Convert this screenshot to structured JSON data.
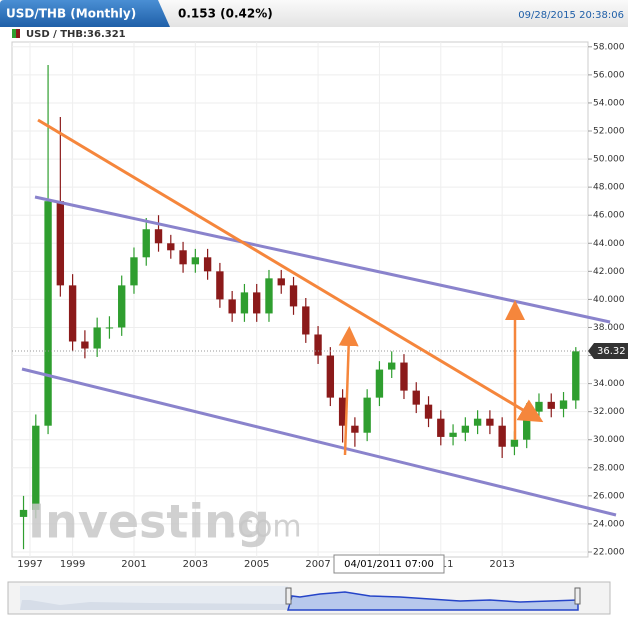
{
  "header": {
    "title": "USD/THB (Monthly)",
    "change": "0.153 (0.42%)",
    "timestamp": "09/28/2015 20:38:06"
  },
  "chart_data": {
    "type": "candlestick",
    "symbol_label": "USD / THB:36.321",
    "x": [
      1997.4,
      1997.8,
      1998.2,
      1998.6,
      1999.0,
      1999.4,
      1999.8,
      2000.2,
      2000.6,
      2001.0,
      2001.4,
      2001.8,
      2002.2,
      2002.6,
      2003.0,
      2003.4,
      2003.8,
      2004.2,
      2004.6,
      2005.0,
      2005.4,
      2005.8,
      2006.2,
      2006.6,
      2007.0,
      2007.4,
      2007.8,
      2008.2,
      2008.6,
      2009.0,
      2009.4,
      2009.8,
      2010.2,
      2010.6,
      2011.0,
      2011.4,
      2011.8,
      2012.2,
      2012.6,
      2013.0,
      2013.4,
      2013.8,
      2014.2,
      2014.6,
      2015.0,
      2015.4
    ],
    "open": [
      24.5,
      25,
      31,
      47,
      41,
      37,
      36.5,
      38,
      38,
      41,
      43,
      45,
      44,
      43.5,
      42.5,
      43,
      42,
      40,
      39,
      40.5,
      39,
      41.5,
      41,
      39.5,
      37.5,
      36,
      33,
      31,
      30.5,
      33,
      35,
      35.5,
      33.5,
      32.5,
      31.5,
      30.2,
      30.5,
      31,
      31.5,
      31,
      29.5,
      30,
      32,
      32.7,
      32.2,
      32.8
    ],
    "high": [
      26,
      31.8,
      56.7,
      53,
      41.8,
      37.8,
      38.7,
      38.8,
      41.7,
      43.7,
      45.8,
      46,
      44.6,
      44.1,
      43.6,
      43.6,
      42.6,
      40.6,
      41.1,
      41.1,
      42.1,
      42.1,
      41.6,
      40.1,
      38.1,
      36.6,
      33.6,
      31.6,
      33.6,
      35.6,
      36.3,
      36.1,
      34.1,
      33.1,
      32.1,
      31.1,
      31.6,
      32.1,
      32.1,
      31.6,
      30.6,
      32.6,
      33.3,
      33.3,
      33.4,
      36.6
    ],
    "low": [
      22.2,
      24.4,
      30.4,
      40.2,
      36.3,
      35.8,
      35.9,
      37.2,
      37.4,
      40.4,
      42.4,
      43.4,
      42.9,
      41.9,
      41.9,
      41.4,
      39.4,
      38.4,
      38.4,
      38.4,
      38.4,
      40.4,
      38.9,
      36.9,
      35.4,
      32.4,
      29.8,
      29.5,
      29.9,
      32.4,
      34.4,
      32.9,
      31.9,
      30.9,
      29.6,
      29.6,
      29.9,
      30.4,
      30.4,
      28.7,
      28.9,
      29.4,
      31.4,
      31.6,
      31.6,
      32.2
    ],
    "close": [
      25,
      31,
      47,
      41,
      37,
      36.5,
      38,
      38,
      41,
      43,
      45,
      44,
      43.5,
      42.5,
      43,
      42,
      40,
      39,
      40.5,
      39,
      41.5,
      41,
      39.5,
      37.5,
      36,
      33,
      31,
      30.5,
      33,
      35,
      35.5,
      33.5,
      32.5,
      31.5,
      30.2,
      30.5,
      31,
      31.5,
      31,
      29.5,
      30,
      32,
      32.7,
      32.2,
      32.8,
      36.3
    ],
    "up_color": "#2f9e2f",
    "down_color": "#8b1a1a",
    "last_price": {
      "value": 36.32,
      "label": "36.32"
    },
    "xlim": [
      1997.22,
      2015.7
    ],
    "xticks": [
      1997,
      1999,
      2001,
      2003,
      2005,
      2007,
      2009,
      2011,
      2013
    ],
    "ylim": [
      22,
      58.2
    ],
    "yticks": [
      {
        "value": 22,
        "label": "22.000"
      },
      {
        "value": 24,
        "label": "24.000"
      },
      {
        "value": 26,
        "label": "26.000"
      },
      {
        "value": 28,
        "label": "28.000"
      },
      {
        "value": 30,
        "label": "30.000"
      },
      {
        "value": 32,
        "label": "32.000"
      },
      {
        "value": 34,
        "label": "34.000"
      },
      {
        "value": 36,
        "label": "36.000"
      },
      {
        "value": 38,
        "label": "38.000"
      },
      {
        "value": 40,
        "label": "40.000"
      },
      {
        "value": 42,
        "label": "42.000"
      },
      {
        "value": 44,
        "label": "44.000"
      },
      {
        "value": 46,
        "label": "46.000"
      },
      {
        "value": 48,
        "label": "48.000"
      },
      {
        "value": 50,
        "label": "50.000"
      },
      {
        "value": 52,
        "label": "52.000"
      },
      {
        "value": 54,
        "label": "54.000"
      },
      {
        "value": 56,
        "label": "56.000"
      },
      {
        "value": 58,
        "label": "58.000"
      }
    ],
    "grid": true
  },
  "watermark": {
    "brand": "Investing",
    "suffix": ".com"
  },
  "crosshair_label": "04/01/2011 07:00"
}
